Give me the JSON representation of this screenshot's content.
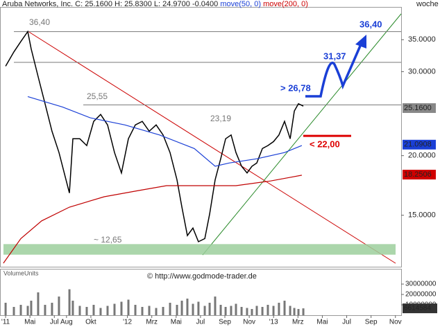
{
  "chart_data": {
    "type": "line",
    "log": true,
    "series": [
      {
        "name": "Aruba Networks, Inc.",
        "color": "#000000",
        "values": [
          30.8,
          33.0,
          34.7,
          36.4,
          33.5,
          29.3,
          25.7,
          22.5,
          20.3,
          16.7,
          21.7,
          21.7,
          21.0,
          23.6,
          24.4,
          23.2,
          20.3,
          18.4,
          21.7,
          23.2,
          23.6,
          22.5,
          23.2,
          22.1,
          20.3,
          17.8,
          15.6,
          13.6,
          14.1,
          13.2,
          13.4,
          15.1,
          17.8,
          19.7,
          21.7,
          22.1,
          20.3,
          19.0,
          18.4,
          19.0,
          19.3,
          20.7,
          21.0,
          21.4,
          22.1,
          23.6,
          21.7,
          24.8,
          25.7,
          25.4
        ]
      },
      {
        "name": "move(50, 0)",
        "color": "#1a3fd6",
        "x": [
          3.82,
          6.67,
          8.95,
          11.79,
          14.64,
          17.49,
          19.2,
          20.34,
          22.62,
          24.9,
          26.32
        ],
        "values": [
          26.6,
          25.3,
          24.0,
          23.2,
          22.1,
          20.7,
          19.0,
          19.3,
          19.7,
          20.3,
          21.0
        ]
      },
      {
        "name": "move(200, 0)",
        "color": "#c00000",
        "x": [
          1.82,
          3.25,
          4.96,
          7.24,
          10.09,
          12.93,
          15.21,
          18.06,
          20.91,
          23.76,
          26.32
        ],
        "values": [
          11.9,
          13.4,
          14.6,
          15.6,
          16.4,
          16.9,
          17.3,
          17.3,
          17.3,
          17.7,
          18.2
        ]
      }
    ],
    "x": [
      2.0,
      2.68,
      3.25,
      3.82,
      4.1,
      4.67,
      5.24,
      5.81,
      6.38,
      7.24,
      7.52,
      8.09,
      8.66,
      9.23,
      9.8,
      10.37,
      10.94,
      11.51,
      12.08,
      12.65,
      13.22,
      13.79,
      14.36,
      14.93,
      15.5,
      16.07,
      16.47,
      16.92,
      17.38,
      17.83,
      18.35,
      18.75,
      19.2,
      19.66,
      20.06,
      20.51,
      20.91,
      21.37,
      21.82,
      22.22,
      22.62,
      23.08,
      23.53,
      23.99,
      24.44,
      24.9,
      25.36,
      25.7,
      26.04,
      26.44
    ],
    "xlim": [
      1.54,
      34.47
    ],
    "ylim": [
      11.7,
      41
    ],
    "xticks": [
      {
        "value": 2,
        "label": "'11"
      },
      {
        "value": 4,
        "label": "Mai"
      },
      {
        "value": 6,
        "label": "Jul"
      },
      {
        "value": 7,
        "label": "Aug"
      },
      {
        "value": 9,
        "label": "Okt"
      },
      {
        "value": 12,
        "label": "'12"
      },
      {
        "value": 14,
        "label": "Mrz"
      },
      {
        "value": 16,
        "label": "Mai"
      },
      {
        "value": 18,
        "label": "Jul"
      },
      {
        "value": 20,
        "label": "Sep"
      },
      {
        "value": 22,
        "label": "Nov"
      },
      {
        "value": 24,
        "label": "'13"
      },
      {
        "value": 26,
        "label": "Mrz"
      },
      {
        "value": 28,
        "label": "Mai"
      },
      {
        "value": 30,
        "label": "Jul"
      },
      {
        "value": 32,
        "label": "Sep"
      },
      {
        "value": 34,
        "label": "Nov"
      }
    ],
    "yticks": [
      {
        "value": 35,
        "label": "35.0000"
      },
      {
        "value": 30,
        "label": "30.0000"
      },
      {
        "value": 20,
        "label": "20.0000"
      },
      {
        "value": 15,
        "label": "15.0000"
      }
    ],
    "last_labels": [
      {
        "value": 25.16,
        "label": "25.1600",
        "color": "#888888"
      },
      {
        "value": 21.0908,
        "label": "21.0908",
        "color": "#1a3fd6"
      },
      {
        "value": 18.2506,
        "label": "18.2506",
        "color": "#d00000"
      }
    ],
    "levels": [
      36.4,
      31.37,
      25.55
    ],
    "stop": 22.0,
    "support_band": [
      12.4,
      13.05
    ],
    "title": "Aruba Networks, Inc.",
    "quote": "C: 25.1600 H: 25.8300 L: 24.9700 -0.0400",
    "period": "woche",
    "annotations": [
      "36,40",
      "25,55",
      "23,19",
      "~ 12,65",
      "> 26,78",
      "31,37",
      "36,40",
      "< 22,00"
    ],
    "volume": {
      "title": "VolumeUnits",
      "source": "© http://www.godmode-trader.de",
      "color": "#777777",
      "values": [
        12000000,
        8000000,
        10000000,
        9000000,
        14000000,
        22000000,
        10000000,
        12000000,
        18000000,
        25000000,
        14000000,
        9000000,
        8000000,
        10000000,
        7000000,
        9000000,
        11000000,
        13000000,
        15000000,
        10000000,
        8000000,
        9000000,
        7000000,
        8000000,
        12000000,
        10000000,
        14000000,
        16000000,
        11000000,
        13000000,
        9000000,
        12000000,
        18000000,
        10000000,
        8000000,
        9000000,
        11000000,
        8000000,
        7000000,
        6000000,
        9000000,
        8000000,
        10000000,
        9000000,
        12000000,
        14000000,
        9000000,
        7000000,
        6000000,
        6614584
      ],
      "ylim": [
        0,
        44700000
      ],
      "yticks": [
        {
          "value": 30000000,
          "label": "30000000"
        },
        {
          "value": 20000000,
          "label": "20000000"
        },
        {
          "value": 10000000,
          "label": "10000000"
        }
      ],
      "last_label": {
        "value": 6614584,
        "label": "6614584"
      }
    }
  }
}
